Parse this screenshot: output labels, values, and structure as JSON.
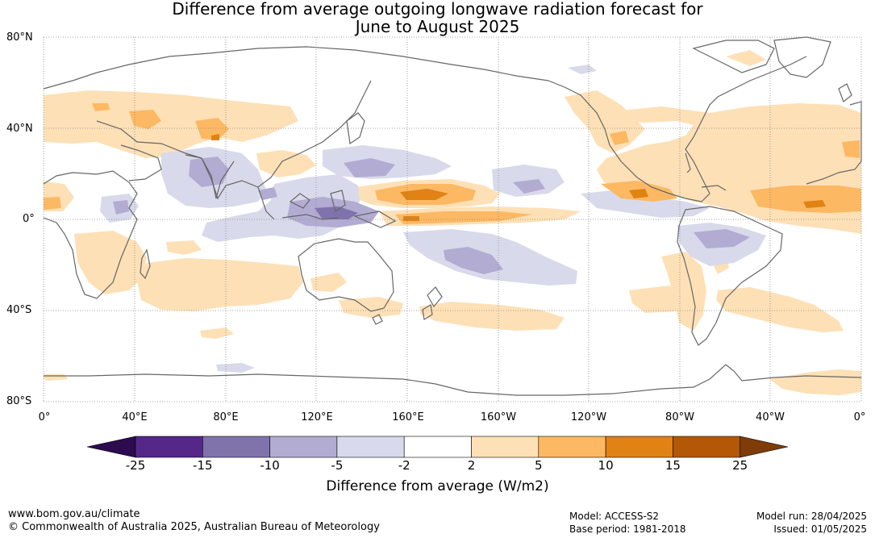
{
  "title": {
    "line1": "Difference from average outgoing longwave radiation forecast for",
    "line2": "June to August 2025"
  },
  "lat_labels": [
    "80°N",
    "40°N",
    "0°",
    "40°S",
    "80°S"
  ],
  "lon_labels": [
    "0°",
    "40°E",
    "80°E",
    "120°E",
    "160°E",
    "160°W",
    "120°W",
    "80°W",
    "40°W",
    "0°"
  ],
  "legend": {
    "title": "Difference from average (W/m2)",
    "ticks": [
      "-25",
      "-15",
      "-10",
      "-5",
      "-2",
      "2",
      "5",
      "10",
      "15",
      "25"
    ],
    "colors": [
      "#2d0b4f",
      "#542788",
      "#8073ac",
      "#b2abd2",
      "#d8daeb",
      "#ffffff",
      "#fee0b6",
      "#fdb863",
      "#e08214",
      "#b35806",
      "#7f3b08"
    ]
  },
  "footer": {
    "left_line1": "www.bom.gov.au/climate",
    "left_line2": "© Commonwealth of Australia 2025, Australian Bureau of Meteorology",
    "mid_line1": "Model: ACCESS-S2",
    "mid_line2": "Base period: 1981-2018",
    "right_line1": "Model run: 28/04/2025",
    "right_line2": "Issued: 01/05/2025"
  }
}
